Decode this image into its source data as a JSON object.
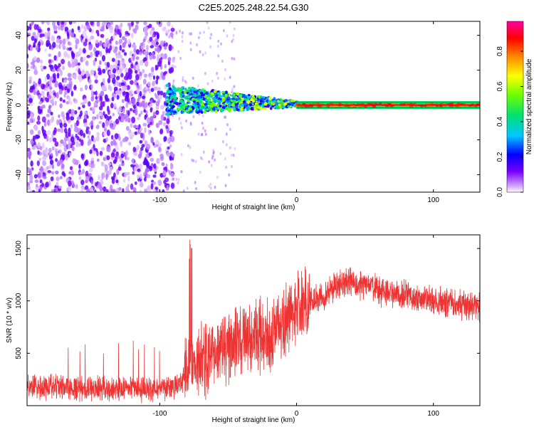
{
  "title": "C2E5.2025.248.22.54.G30",
  "chart_data": [
    {
      "type": "heatmap",
      "name": "spectrogram",
      "xlabel": "Height of straight line (km)",
      "ylabel": "Frequency (Hz)",
      "xlim": [
        -197,
        134
      ],
      "ylim": [
        -50,
        48
      ],
      "xticks": [
        -100,
        0,
        100
      ],
      "xtick_labels": [
        "-100",
        "0",
        "100"
      ],
      "yticks": [
        -40,
        -20,
        0,
        20,
        40
      ],
      "ytick_labels": [
        "-40",
        "-20",
        "0",
        "20",
        "40"
      ],
      "colorbar": {
        "label": "Normalized spectral amplitude",
        "range": [
          0,
          0.97
        ],
        "ticks": [
          0,
          0.2,
          0.4,
          0.6,
          0.8
        ],
        "tick_labels": [
          "0.0",
          "0.2",
          "0.4",
          "0.6",
          "0.8"
        ],
        "colormap": [
          "#ffffff",
          "#7a00ff",
          "#0000ff",
          "#00c8ff",
          "#00e070",
          "#70ff00",
          "#ffff00",
          "#ff8000",
          "#ff0000",
          "#ff00a0"
        ]
      },
      "regions": [
        {
          "desc": "scattered noise",
          "x": [
            -197,
            -95
          ],
          "freq": [
            -50,
            48
          ],
          "amplitude": 0.15
        },
        {
          "desc": "onset band",
          "x": [
            -95,
            -55
          ],
          "freq": [
            -2,
            10
          ],
          "amplitude": 0.45
        },
        {
          "desc": "converging band",
          "x": [
            -55,
            0
          ],
          "freq": [
            -4,
            6
          ],
          "amplitude": 0.6
        },
        {
          "desc": "stable line",
          "x": [
            0,
            134
          ],
          "freq": [
            -1,
            1
          ],
          "amplitude": 0.9
        }
      ]
    },
    {
      "type": "line",
      "name": "snr",
      "xlabel": "Height of straight line (km)",
      "ylabel": "SNR (10 * v/v)",
      "xlim": [
        -197,
        134
      ],
      "ylim": [
        0,
        1630
      ],
      "xticks": [
        -100,
        0,
        100
      ],
      "xtick_labels": [
        "-100",
        "0",
        "100"
      ],
      "yticks": [
        500,
        1000,
        1500
      ],
      "ytick_labels": [
        "500",
        "1000",
        "1500"
      ],
      "color": "#ee3333",
      "series_envelope": {
        "x": [
          -197,
          -170,
          -140,
          -110,
          -90,
          -82,
          -78,
          -70,
          -60,
          -50,
          -40,
          -30,
          -20,
          -10,
          0,
          10,
          20,
          30,
          40,
          50,
          60,
          70,
          80,
          90,
          100,
          110,
          120,
          134
        ],
        "y": [
          180,
          170,
          165,
          160,
          180,
          260,
          400,
          420,
          480,
          560,
          650,
          700,
          650,
          780,
          900,
          980,
          1050,
          1150,
          1180,
          1150,
          1100,
          1070,
          1050,
          1020,
          1000,
          980,
          960,
          930
        ]
      }
    }
  ]
}
